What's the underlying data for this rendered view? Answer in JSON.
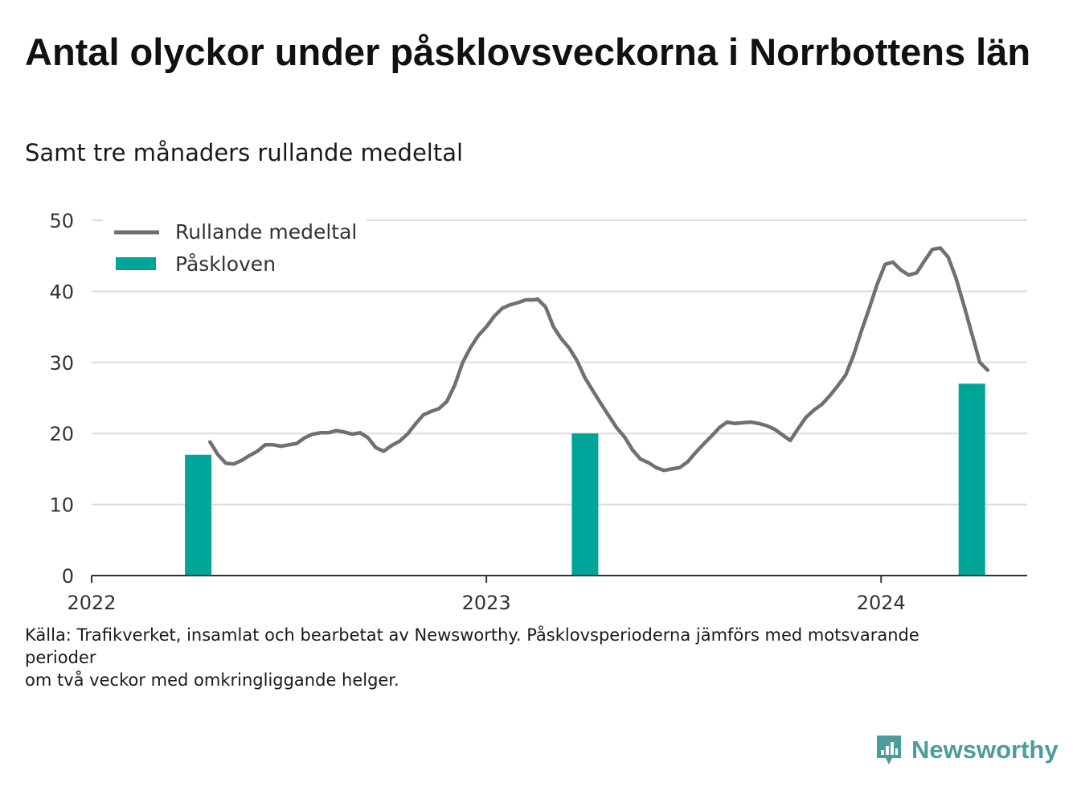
{
  "title": "Antal olyckor under påsklovsveckorna i Norrbottens län",
  "subtitle": "Samt tre månaders rullande medeltal",
  "footnote": {
    "line1": "Källa: Trafikverket, insamlat och bearbetat av Newsworthy. Påsklovsperioderna jämförs med motsvarande perioder",
    "line2": "om två veckor med omkringliggande helger."
  },
  "brand": {
    "name": "Newsworthy",
    "icon": "newsworthy-logo-icon"
  },
  "colors": {
    "line": "#6f6f75",
    "bar": "#00a59a",
    "grid": "#dddddd",
    "axis": "#333333"
  },
  "chart_data": {
    "type": "line",
    "ylim": [
      0,
      50
    ],
    "yticks": [
      "0",
      "10",
      "20",
      "30",
      "40",
      "50"
    ],
    "xlim": [
      2022.0,
      2024.37
    ],
    "xticks": [
      {
        "label": "2022",
        "value": 2022
      },
      {
        "label": "2023",
        "value": 2023
      },
      {
        "label": "2024",
        "value": 2024
      }
    ],
    "legend": {
      "placement": "top-left",
      "entries": [
        "Rullande medeltal",
        "Påskloven"
      ]
    },
    "grid": true,
    "series": [
      {
        "name": "Rullande medeltal",
        "kind": "line",
        "points": [
          [
            2022.3,
            18.8
          ],
          [
            2022.32,
            17.0
          ],
          [
            2022.34,
            15.8
          ],
          [
            2022.36,
            15.7
          ],
          [
            2022.38,
            16.2
          ],
          [
            2022.4,
            16.9
          ],
          [
            2022.42,
            17.5
          ],
          [
            2022.44,
            18.4
          ],
          [
            2022.46,
            18.4
          ],
          [
            2022.48,
            18.2
          ],
          [
            2022.5,
            18.4
          ],
          [
            2022.52,
            18.6
          ],
          [
            2022.54,
            19.4
          ],
          [
            2022.56,
            19.9
          ],
          [
            2022.58,
            20.1
          ],
          [
            2022.6,
            20.1
          ],
          [
            2022.62,
            20.4
          ],
          [
            2022.64,
            20.2
          ],
          [
            2022.66,
            19.9
          ],
          [
            2022.68,
            20.1
          ],
          [
            2022.7,
            19.4
          ],
          [
            2022.72,
            18.0
          ],
          [
            2022.74,
            17.5
          ],
          [
            2022.76,
            18.3
          ],
          [
            2022.78,
            18.9
          ],
          [
            2022.8,
            19.9
          ],
          [
            2022.82,
            21.3
          ],
          [
            2022.84,
            22.6
          ],
          [
            2022.86,
            23.1
          ],
          [
            2022.88,
            23.5
          ],
          [
            2022.9,
            24.5
          ],
          [
            2022.92,
            26.8
          ],
          [
            2022.94,
            30.0
          ],
          [
            2022.96,
            32.1
          ],
          [
            2022.98,
            33.8
          ],
          [
            2023.0,
            35.0
          ],
          [
            2023.02,
            36.5
          ],
          [
            2023.04,
            37.6
          ],
          [
            2023.06,
            38.1
          ],
          [
            2023.08,
            38.4
          ],
          [
            2023.1,
            38.8
          ],
          [
            2023.12,
            38.8
          ],
          [
            2023.13,
            38.9
          ],
          [
            2023.15,
            37.8
          ],
          [
            2023.17,
            35.0
          ],
          [
            2023.19,
            33.3
          ],
          [
            2023.21,
            32.0
          ],
          [
            2023.23,
            30.2
          ],
          [
            2023.25,
            27.8
          ],
          [
            2023.27,
            26.0
          ],
          [
            2023.29,
            24.2
          ],
          [
            2023.31,
            22.5
          ],
          [
            2023.33,
            20.8
          ],
          [
            2023.35,
            19.5
          ],
          [
            2023.37,
            17.7
          ],
          [
            2023.39,
            16.4
          ],
          [
            2023.41,
            15.9
          ],
          [
            2023.43,
            15.2
          ],
          [
            2023.45,
            14.8
          ],
          [
            2023.47,
            15.0
          ],
          [
            2023.49,
            15.2
          ],
          [
            2023.51,
            16.0
          ],
          [
            2023.53,
            17.3
          ],
          [
            2023.55,
            18.5
          ],
          [
            2023.57,
            19.6
          ],
          [
            2023.59,
            20.8
          ],
          [
            2023.61,
            21.6
          ],
          [
            2023.63,
            21.4
          ],
          [
            2023.65,
            21.5
          ],
          [
            2023.67,
            21.6
          ],
          [
            2023.69,
            21.4
          ],
          [
            2023.71,
            21.1
          ],
          [
            2023.73,
            20.6
          ],
          [
            2023.75,
            19.8
          ],
          [
            2023.77,
            19.0
          ],
          [
            2023.79,
            20.7
          ],
          [
            2023.81,
            22.3
          ],
          [
            2023.83,
            23.3
          ],
          [
            2023.85,
            24.1
          ],
          [
            2023.87,
            25.3
          ],
          [
            2023.89,
            26.7
          ],
          [
            2023.91,
            28.2
          ],
          [
            2023.93,
            31.0
          ],
          [
            2023.95,
            34.4
          ],
          [
            2023.97,
            37.6
          ],
          [
            2023.99,
            41.0
          ],
          [
            2024.01,
            43.8
          ],
          [
            2024.03,
            44.1
          ],
          [
            2024.05,
            43.0
          ],
          [
            2024.07,
            42.3
          ],
          [
            2024.09,
            42.6
          ],
          [
            2024.11,
            44.3
          ],
          [
            2024.13,
            45.9
          ],
          [
            2024.15,
            46.1
          ],
          [
            2024.17,
            44.8
          ],
          [
            2024.19,
            41.8
          ],
          [
            2024.21,
            38.0
          ],
          [
            2024.23,
            34.0
          ],
          [
            2024.25,
            30.0
          ],
          [
            2024.27,
            28.9
          ]
        ]
      },
      {
        "name": "Påskloven",
        "kind": "bar",
        "points": [
          [
            2022.27,
            17
          ],
          [
            2023.25,
            20
          ],
          [
            2024.23,
            27
          ]
        ]
      }
    ]
  }
}
